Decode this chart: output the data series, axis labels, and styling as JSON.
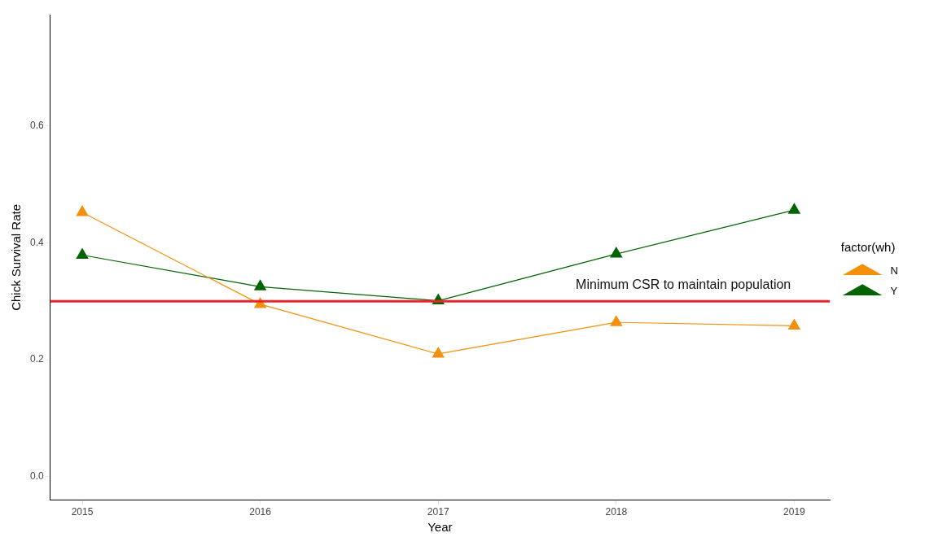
{
  "chart_data": {
    "type": "line",
    "xlabel": "Year",
    "ylabel": "Chick Survival Rate",
    "legend_title": "factor(wh)",
    "x": [
      2015,
      2016,
      2017,
      2018,
      2019
    ],
    "series": [
      {
        "name": "N",
        "color": "#f4900c",
        "values": [
          0.452,
          0.295,
          0.21,
          0.264,
          0.258
        ]
      },
      {
        "name": "Y",
        "color": "#006400",
        "values": [
          0.379,
          0.325,
          0.301,
          0.381,
          0.456
        ]
      }
    ],
    "xlim": [
      2014.82,
      2019.2
    ],
    "xticks": [
      2015,
      2016,
      2017,
      2018,
      2019
    ],
    "ylim": [
      -0.04,
      0.79
    ],
    "yticks": [
      {
        "value": 0,
        "label": "0.0"
      },
      {
        "value": 0.2,
        "label": "0.2"
      },
      {
        "value": 0.4,
        "label": "0.4"
      },
      {
        "value": 0.6,
        "label": "0.6"
      }
    ],
    "ref_lines": [
      {
        "axis": "y",
        "value": 0.3,
        "label": "Minimum CSR to maintain population",
        "color": "#e8262b"
      }
    ],
    "grid": false,
    "legend": "right",
    "marker": "triangle",
    "line_style": "solid"
  }
}
